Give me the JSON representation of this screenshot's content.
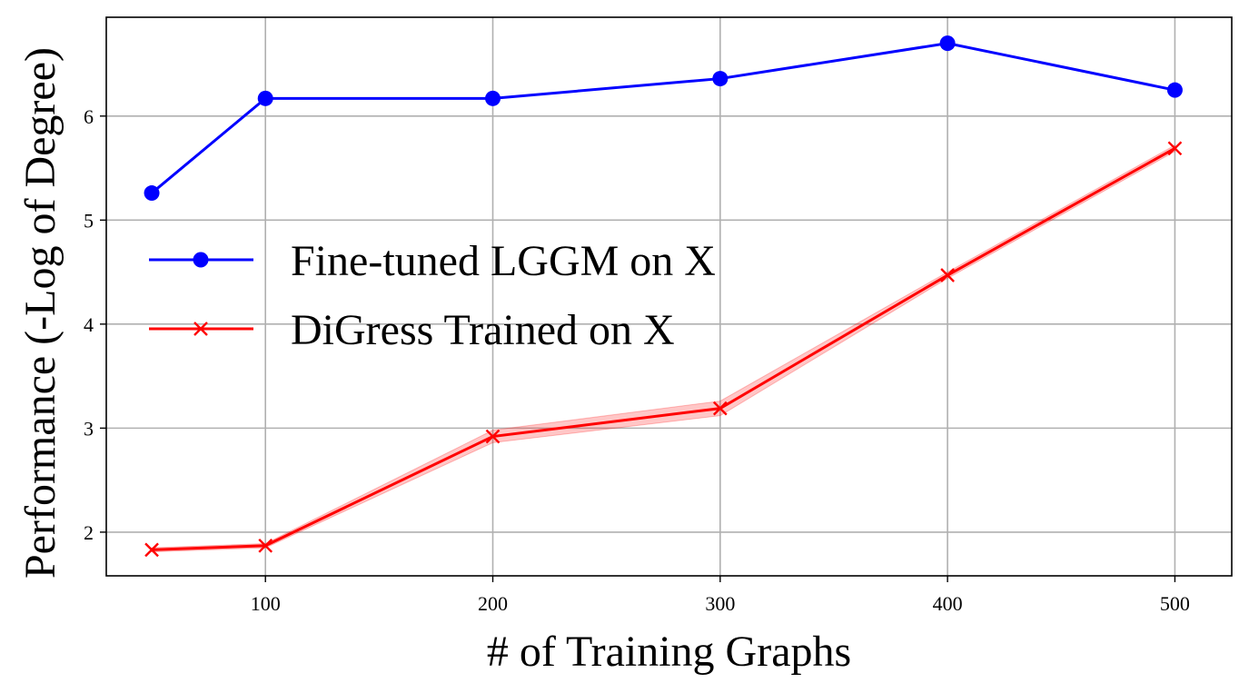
{
  "chart_data": {
    "type": "line",
    "title": "",
    "xlabel": "# of Training Graphs",
    "ylabel": "Performance (-Log of Degree)",
    "xlim": [
      30,
      525
    ],
    "ylim": [
      1.58,
      6.95
    ],
    "xticks": [
      100,
      200,
      300,
      400,
      500
    ],
    "yticks": [
      2,
      3,
      4,
      5,
      6
    ],
    "grid": true,
    "legend_position": "center-left",
    "series": [
      {
        "name": "Fine-tuned LGGM on X",
        "color": "#0000ff",
        "marker": "circle",
        "x": [
          50,
          100,
          200,
          300,
          400,
          500
        ],
        "y": [
          5.26,
          6.17,
          6.17,
          6.36,
          6.7,
          6.25
        ]
      },
      {
        "name": "DiGress Trained on X",
        "color": "#ff0000",
        "marker": "x",
        "x": [
          50,
          100,
          200,
          300,
          400,
          500
        ],
        "y": [
          1.83,
          1.87,
          2.92,
          3.19,
          4.47,
          5.69
        ],
        "band_lower": [
          1.81,
          1.85,
          2.86,
          3.12,
          4.44,
          5.66
        ],
        "band_upper": [
          1.85,
          1.89,
          2.98,
          3.26,
          4.5,
          5.72
        ],
        "band_color": "#ff0000"
      }
    ]
  }
}
